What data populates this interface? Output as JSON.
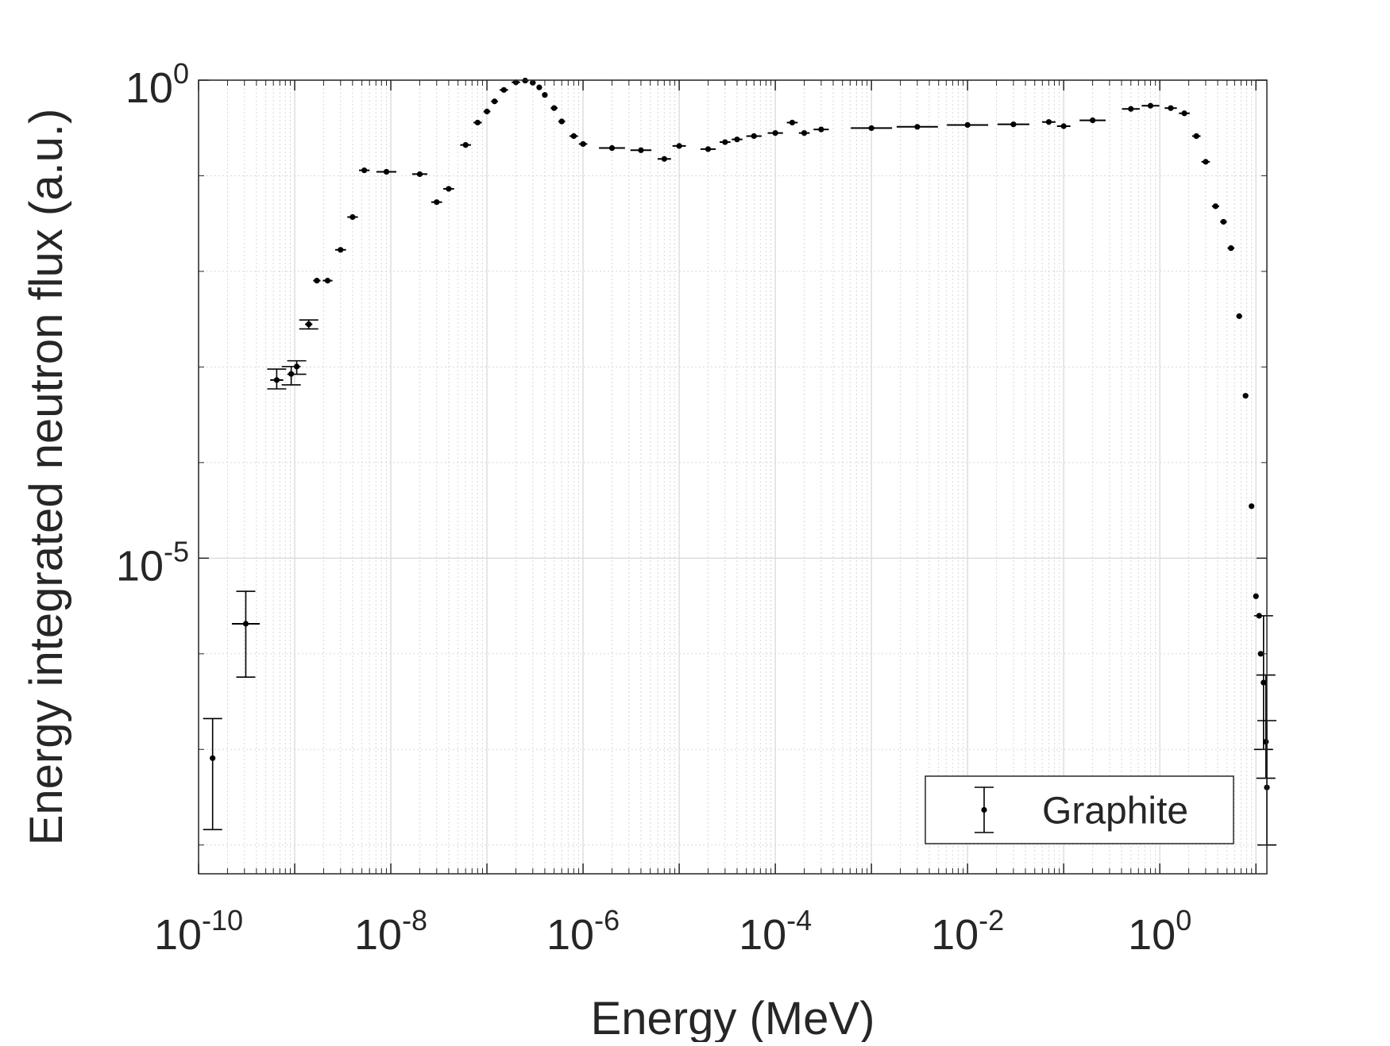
{
  "chart_data": {
    "type": "scatter",
    "xlabel": "Energy (MeV)",
    "ylabel": "Energy integrated neutron flux (a.u.)",
    "x_scale": "log",
    "y_scale": "log",
    "xlim": [
      1e-10,
      13
    ],
    "ylim": [
      5e-09,
      1.0
    ],
    "grid": true,
    "minor_grid": true,
    "legend_position": "bottom-right",
    "x_ticks": [
      {
        "value": 1e-10,
        "base": "10",
        "exp": "-10"
      },
      {
        "value": 1e-08,
        "base": "10",
        "exp": "-8"
      },
      {
        "value": 1e-06,
        "base": "10",
        "exp": "-6"
      },
      {
        "value": 0.0001,
        "base": "10",
        "exp": "-4"
      },
      {
        "value": 0.01,
        "base": "10",
        "exp": "-2"
      },
      {
        "value": 1,
        "base": "10",
        "exp": "0"
      }
    ],
    "y_ticks": [
      {
        "value": 1e-05,
        "base": "10",
        "exp": "-5"
      },
      {
        "value": 1,
        "base": "10",
        "exp": "0"
      }
    ],
    "series": [
      {
        "name": "Graphite",
        "color": "#000000",
        "style": "errorbar-points",
        "points": [
          {
            "x": 1.4e-10,
            "y": 8.1e-08,
            "ylo": 1.45e-08,
            "yhi": 2.1e-07
          },
          {
            "x": 3.1e-10,
            "y": 2.06e-06,
            "ylo": 5.7e-07,
            "yhi": 4.5e-06
          },
          {
            "x": 6.5e-10,
            "y": 0.00073,
            "ylo": 0.00059,
            "yhi": 0.00095
          },
          {
            "x": 9.2e-10,
            "y": 0.000845,
            "ylo": 0.00065,
            "yhi": 0.00101
          },
          {
            "x": 1.05e-09,
            "y": 0.00101,
            "ylo": 0.00084,
            "yhi": 0.00116
          },
          {
            "x": 1.4e-09,
            "y": 0.0028,
            "ylo": 0.0025,
            "yhi": 0.0031
          },
          {
            "x": 1.7e-09,
            "y": 0.008
          },
          {
            "x": 2.2e-09,
            "y": 0.008
          },
          {
            "x": 3e-09,
            "y": 0.0168
          },
          {
            "x": 4e-09,
            "y": 0.037
          },
          {
            "x": 5.3e-09,
            "y": 0.114
          },
          {
            "x": 9e-09,
            "y": 0.11
          },
          {
            "x": 2e-08,
            "y": 0.104
          },
          {
            "x": 3e-08,
            "y": 0.053
          },
          {
            "x": 4e-08,
            "y": 0.073
          },
          {
            "x": 6e-08,
            "y": 0.21
          },
          {
            "x": 8e-08,
            "y": 0.36
          },
          {
            "x": 1e-07,
            "y": 0.47
          },
          {
            "x": 1.2e-07,
            "y": 0.6
          },
          {
            "x": 1.5e-07,
            "y": 0.79
          },
          {
            "x": 2e-07,
            "y": 0.95
          },
          {
            "x": 2.5e-07,
            "y": 0.99
          },
          {
            "x": 3e-07,
            "y": 0.94
          },
          {
            "x": 3.5e-07,
            "y": 0.84
          },
          {
            "x": 4e-07,
            "y": 0.7
          },
          {
            "x": 5e-07,
            "y": 0.51
          },
          {
            "x": 6e-07,
            "y": 0.37
          },
          {
            "x": 8e-07,
            "y": 0.26
          },
          {
            "x": 1e-06,
            "y": 0.215
          },
          {
            "x": 2e-06,
            "y": 0.195
          },
          {
            "x": 4e-06,
            "y": 0.185
          },
          {
            "x": 7e-06,
            "y": 0.15
          },
          {
            "x": 1e-05,
            "y": 0.205
          },
          {
            "x": 2e-05,
            "y": 0.19
          },
          {
            "x": 3e-05,
            "y": 0.225
          },
          {
            "x": 4e-05,
            "y": 0.24
          },
          {
            "x": 6e-05,
            "y": 0.26
          },
          {
            "x": 0.0001,
            "y": 0.28
          },
          {
            "x": 0.00015,
            "y": 0.36
          },
          {
            "x": 0.0002,
            "y": 0.28
          },
          {
            "x": 0.0003,
            "y": 0.305
          },
          {
            "x": 0.001,
            "y": 0.315
          },
          {
            "x": 0.003,
            "y": 0.325
          },
          {
            "x": 0.01,
            "y": 0.34
          },
          {
            "x": 0.03,
            "y": 0.345
          },
          {
            "x": 0.07,
            "y": 0.365
          },
          {
            "x": 0.1,
            "y": 0.33
          },
          {
            "x": 0.2,
            "y": 0.38
          },
          {
            "x": 0.5,
            "y": 0.5
          },
          {
            "x": 0.8,
            "y": 0.54
          },
          {
            "x": 1.3,
            "y": 0.51
          },
          {
            "x": 1.8,
            "y": 0.45
          },
          {
            "x": 2.4,
            "y": 0.26
          },
          {
            "x": 3.0,
            "y": 0.14
          },
          {
            "x": 3.8,
            "y": 0.048
          },
          {
            "x": 4.6,
            "y": 0.033
          },
          {
            "x": 5.5,
            "y": 0.0175
          },
          {
            "x": 6.7,
            "y": 0.0034
          },
          {
            "x": 7.8,
            "y": 0.0005
          },
          {
            "x": 9.0,
            "y": 3.5e-05
          },
          {
            "x": 10.0,
            "y": 4e-06
          },
          {
            "x": 10.8,
            "y": 2.5e-06
          },
          {
            "x": 11.2,
            "y": 1e-06
          },
          {
            "x": 12.0,
            "y": 5e-07,
            "ylo": 1e-07,
            "yhi": 2.5e-06
          },
          {
            "x": 12.7,
            "y": 1.2e-07,
            "ylo": 5e-08,
            "yhi": 6e-07
          },
          {
            "x": 13.0,
            "y": 4e-08,
            "ylo": 1e-08,
            "yhi": 2e-07
          }
        ]
      }
    ]
  }
}
